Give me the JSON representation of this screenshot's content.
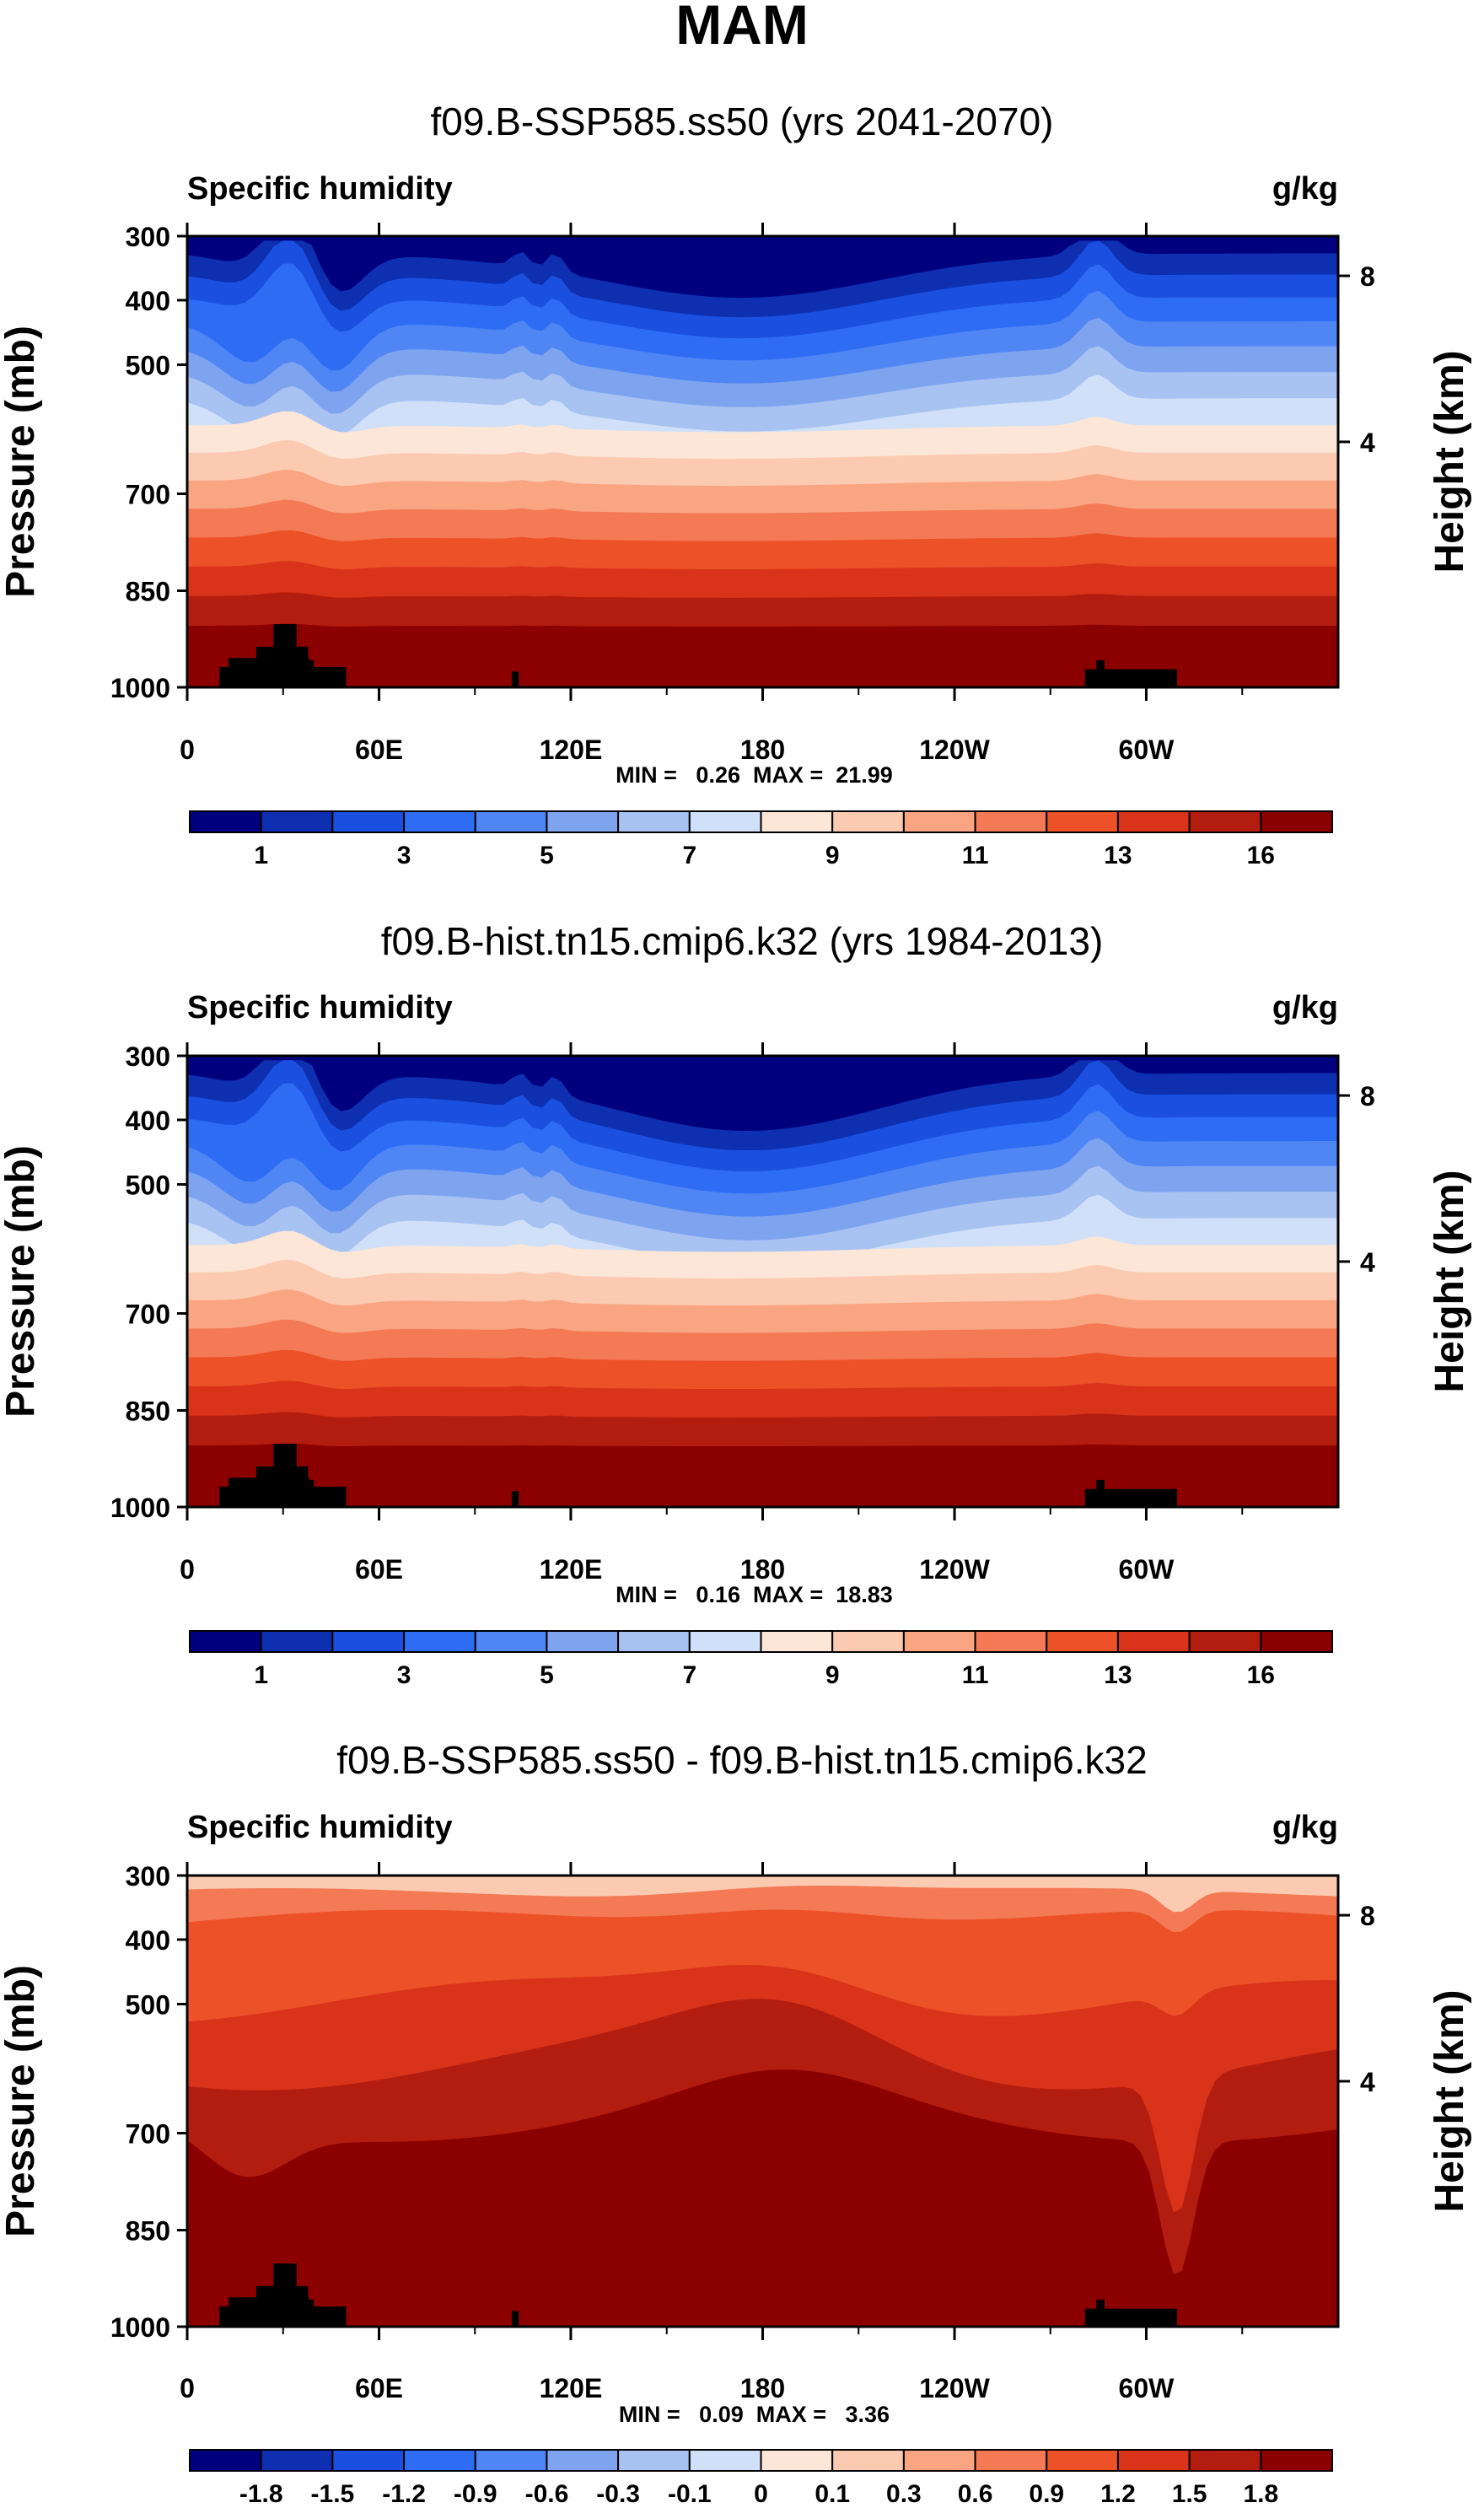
{
  "figure": {
    "title": "MAM",
    "colors": {
      "abs": [
        "#00007f",
        "#0d2fb0",
        "#1a4fe0",
        "#2f6cf4",
        "#4f86f4",
        "#7ea4f0",
        "#a8c2f2",
        "#cfe0f8",
        "#fbe6d8",
        "#fccab0",
        "#f9a582",
        "#f47a56",
        "#ec5128",
        "#d9331a",
        "#b31d10",
        "#8b0000"
      ],
      "diff": [
        "#00007f",
        "#0d2fb0",
        "#1a4fe0",
        "#2f6cf4",
        "#4f86f4",
        "#7ea4f0",
        "#a8c2f2",
        "#cfe0f8",
        "#fbe6d8",
        "#fccab0",
        "#f9a582",
        "#f47a56",
        "#ec5128",
        "#d9331a",
        "#b31d10",
        "#8b0000"
      ]
    }
  },
  "chart_data": [
    {
      "type": "contour",
      "title": "f09.B-SSP585.ss50 (yrs 2041-2070)",
      "left_label": "Specific humidity",
      "right_label": "g/kg",
      "ylabel": "Pressure (mb)",
      "ylabel_right": "Height (km)",
      "yticks": [
        "300",
        "400",
        "500",
        "700",
        "850",
        "1000"
      ],
      "yticks_right": [
        "8",
        "4"
      ],
      "xticks": [
        "0",
        "60E",
        "120E",
        "180",
        "120W",
        "60W"
      ],
      "stats": "MIN =   0.26  MAX =  21.99",
      "colorbar_labels": [
        "1",
        "3",
        "5",
        "7",
        "9",
        "11",
        "13",
        "16"
      ],
      "palette": "abs"
    },
    {
      "type": "contour",
      "title": "f09.B-hist.tn15.cmip6.k32 (yrs 1984-2013)",
      "left_label": "Specific humidity",
      "right_label": "g/kg",
      "ylabel": "Pressure (mb)",
      "ylabel_right": "Height (km)",
      "yticks": [
        "300",
        "400",
        "500",
        "700",
        "850",
        "1000"
      ],
      "yticks_right": [
        "8",
        "4"
      ],
      "xticks": [
        "0",
        "60E",
        "120E",
        "180",
        "120W",
        "60W"
      ],
      "stats": "MIN =   0.16  MAX =  18.83",
      "colorbar_labels": [
        "1",
        "3",
        "5",
        "7",
        "9",
        "11",
        "13",
        "16"
      ],
      "palette": "abs"
    },
    {
      "type": "contour",
      "title": "f09.B-SSP585.ss50 - f09.B-hist.tn15.cmip6.k32",
      "left_label": "Specific humidity",
      "right_label": "g/kg",
      "ylabel": "Pressure (mb)",
      "ylabel_right": "Height (km)",
      "yticks": [
        "300",
        "400",
        "500",
        "700",
        "850",
        "1000"
      ],
      "yticks_right": [
        "8",
        "4"
      ],
      "xticks": [
        "0",
        "60E",
        "120E",
        "180",
        "120W",
        "60W"
      ],
      "stats": "MIN =   0.09  MAX =   3.36",
      "colorbar_labels": [
        "-1.8",
        "-1.5",
        "-1.2",
        "-0.9",
        "-0.6",
        "-0.3",
        "-0.1",
        "0",
        "0.1",
        "0.3",
        "0.6",
        "0.9",
        "1.2",
        "1.5",
        "1.8"
      ],
      "palette": "diff"
    }
  ]
}
